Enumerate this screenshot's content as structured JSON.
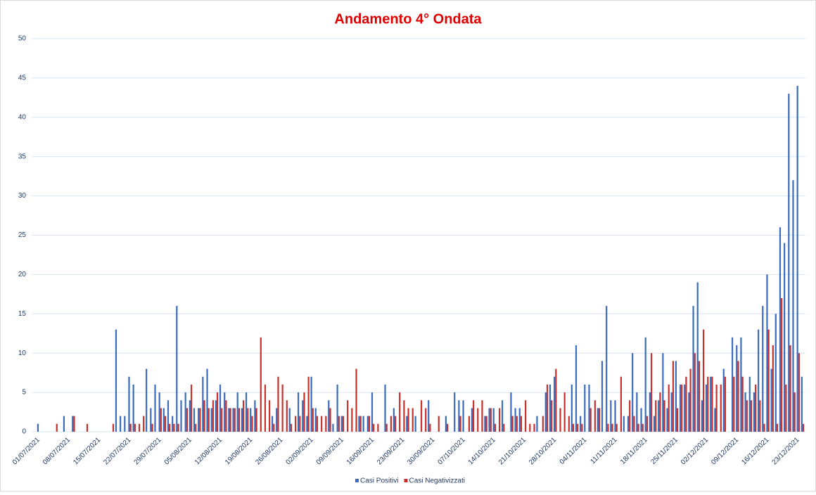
{
  "chart_data": {
    "type": "bar",
    "title": "Andamento 4° Ondata",
    "categories": [
      "01/07/2021",
      null,
      null,
      null,
      null,
      null,
      null,
      "08/07/2021",
      null,
      null,
      null,
      null,
      null,
      null,
      "15/07/2021",
      null,
      null,
      null,
      null,
      null,
      null,
      "22/07/2021",
      null,
      null,
      null,
      null,
      null,
      null,
      "29/07/2021",
      null,
      null,
      null,
      null,
      null,
      null,
      "05/08/2021",
      null,
      null,
      null,
      null,
      null,
      null,
      "12/08/2021",
      null,
      null,
      null,
      null,
      null,
      null,
      "19/08/2021",
      null,
      null,
      null,
      null,
      null,
      null,
      "26/08/2021",
      null,
      null,
      null,
      null,
      null,
      null,
      "02/09/2021",
      null,
      null,
      null,
      null,
      null,
      null,
      "09/09/2021",
      null,
      null,
      null,
      null,
      null,
      null,
      "16/09/2021",
      null,
      null,
      null,
      null,
      null,
      null,
      "23/09/2021",
      null,
      null,
      null,
      null,
      null,
      null,
      "30/09/2021",
      null,
      null,
      null,
      null,
      null,
      null,
      "07/10/2021",
      null,
      null,
      null,
      null,
      null,
      null,
      "14/10/2021",
      null,
      null,
      null,
      null,
      null,
      null,
      "21/10/2021",
      null,
      null,
      null,
      null,
      null,
      null,
      "28/10/2021",
      null,
      null,
      null,
      null,
      null,
      null,
      "04/11/2021",
      null,
      null,
      null,
      null,
      null,
      null,
      "11/11/2021",
      null,
      null,
      null,
      null,
      null,
      null,
      "18/11/2021",
      null,
      null,
      null,
      null,
      null,
      null,
      "25/11/2021",
      null,
      null,
      null,
      null,
      null,
      null,
      "02/12/2021",
      null,
      null,
      null,
      null,
      null,
      null,
      "09/12/2021",
      null,
      null,
      null,
      null,
      null,
      null,
      "16/12/2021",
      null,
      null,
      null,
      null,
      null,
      null,
      "23/12/2021",
      null
    ],
    "series": [
      {
        "name": "Casi Positivi",
        "color": "#3a6bbf",
        "values": [
          1,
          0,
          0,
          0,
          0,
          0,
          2,
          0,
          2,
          0,
          0,
          0,
          0,
          0,
          0,
          0,
          0,
          0,
          13,
          2,
          2,
          7,
          6,
          0,
          0,
          8,
          3,
          6,
          5,
          3,
          4,
          2,
          16,
          4,
          5,
          4,
          3,
          3,
          7,
          8,
          3,
          4,
          6,
          5,
          3,
          3,
          5,
          3,
          5,
          3,
          4,
          0,
          0,
          0,
          2,
          3,
          0,
          0,
          3,
          0,
          5,
          4,
          2,
          7,
          3,
          0,
          0,
          4,
          1,
          6,
          2,
          0,
          0,
          0,
          2,
          2,
          2,
          5,
          0,
          0,
          6,
          0,
          3,
          0,
          0,
          2,
          0,
          2,
          0,
          0,
          4,
          0,
          0,
          0,
          2,
          0,
          5,
          4,
          4,
          0,
          3,
          0,
          0,
          2,
          3,
          3,
          0,
          4,
          0,
          5,
          3,
          3,
          0,
          0,
          0,
          2,
          0,
          5,
          6,
          7,
          0,
          0,
          0,
          6,
          11,
          2,
          6,
          6,
          0,
          3,
          9,
          16,
          4,
          4,
          0,
          2,
          2,
          10,
          5,
          3,
          12,
          5,
          2,
          4,
          10,
          3,
          5,
          9,
          6,
          6,
          5,
          16,
          19,
          4,
          6,
          7,
          3,
          0,
          8,
          0,
          12,
          11,
          12,
          5,
          7,
          5,
          13,
          16,
          20,
          8,
          15,
          26,
          24,
          43,
          32,
          44,
          7
        ]
      },
      {
        "name": "Casi Negativizzati",
        "color": "#c8302c",
        "values": [
          0,
          0,
          0,
          0,
          1,
          0,
          0,
          0,
          2,
          0,
          0,
          1,
          0,
          0,
          0,
          0,
          0,
          1,
          0,
          0,
          0,
          1,
          1,
          1,
          2,
          0,
          1,
          0,
          3,
          2,
          1,
          1,
          1,
          0,
          3,
          6,
          1,
          3,
          4,
          3,
          4,
          5,
          3,
          4,
          3,
          3,
          3,
          4,
          3,
          2,
          3,
          12,
          6,
          4,
          1,
          7,
          6,
          4,
          1,
          2,
          2,
          5,
          7,
          3,
          2,
          2,
          2,
          3,
          0,
          2,
          2,
          4,
          3,
          8,
          2,
          0,
          2,
          1,
          1,
          0,
          1,
          2,
          2,
          5,
          4,
          3,
          3,
          0,
          4,
          3,
          1,
          0,
          2,
          0,
          1,
          0,
          0,
          2,
          0,
          2,
          4,
          3,
          4,
          2,
          3,
          1,
          3,
          1,
          0,
          2,
          2,
          2,
          4,
          1,
          1,
          0,
          2,
          6,
          4,
          8,
          3,
          5,
          2,
          1,
          1,
          1,
          0,
          3,
          4,
          3,
          0,
          1,
          1,
          1,
          7,
          0,
          4,
          2,
          1,
          1,
          2,
          10,
          4,
          5,
          4,
          6,
          9,
          3,
          6,
          7,
          8,
          10,
          9,
          13,
          7,
          7,
          6,
          6,
          7,
          0,
          7,
          9,
          7,
          4,
          4,
          6,
          4,
          1,
          13,
          11,
          1,
          17,
          6,
          11,
          5,
          10,
          1
        ]
      }
    ],
    "ylim": [
      0,
      50
    ],
    "yticks": [
      0,
      5,
      10,
      15,
      20,
      25,
      30,
      35,
      40,
      45,
      50
    ],
    "grid": true,
    "legend": "bottom"
  }
}
